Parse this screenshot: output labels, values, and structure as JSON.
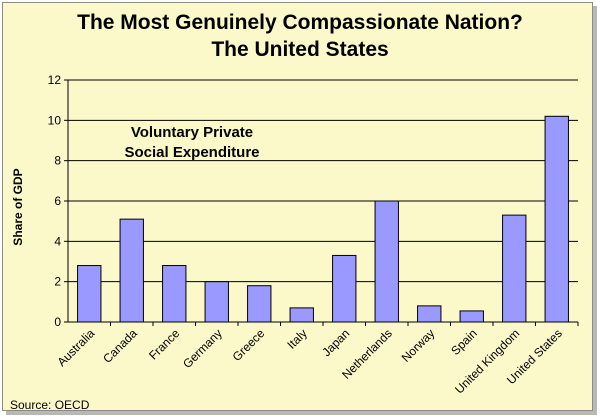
{
  "title_line1": "The Most Genuinely Compassionate Nation?",
  "title_line2": "The United States",
  "annotation_line1": "Voluntary Private",
  "annotation_line2": "Social Expenditure",
  "source": "Source:  OECD",
  "chart_data": {
    "type": "bar",
    "title": "The Most Genuinely Compassionate Nation? The United States",
    "ylabel": "Share of GDP",
    "xlabel": "",
    "categories": [
      "Australia",
      "Canada",
      "France",
      "Germany",
      "Greece",
      "Italy",
      "Japan",
      "Netherlands",
      "Norway",
      "Spain",
      "United Kingdom",
      "United States"
    ],
    "values": [
      2.8,
      5.1,
      2.8,
      2.0,
      1.8,
      0.7,
      3.3,
      6.0,
      0.8,
      0.55,
      5.3,
      10.2
    ],
    "ylim": [
      0,
      12
    ],
    "yticks": [
      0,
      2,
      4,
      6,
      8,
      10,
      12
    ],
    "grid": true,
    "bar_color": "#9999ff",
    "plot_background": "#fbf9c9"
  }
}
